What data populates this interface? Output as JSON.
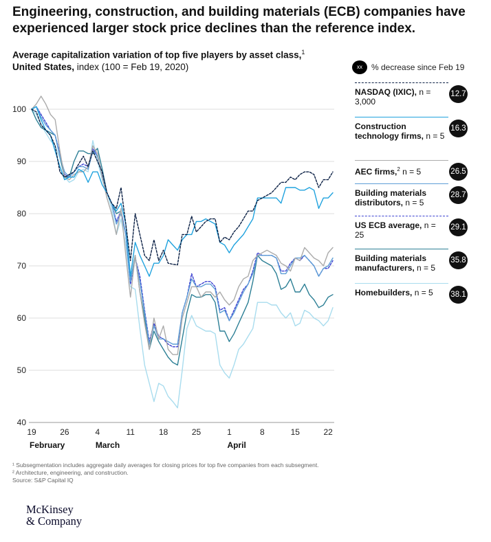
{
  "headline": "Engineering, construction, and building materials (ECB) companies have experienced larger stock price declines than the reference index.",
  "subtitle": {
    "bold_part1": "Average capitalization variation of top five players by asset class,",
    "sup": "1",
    "bold_part2": "United States,",
    "normal_part": " index (100 = Feb 19, 2020)"
  },
  "legend_header": {
    "badge": "xx",
    "text": "% decrease since Feb 19"
  },
  "legend": [
    {
      "name": "NASDAQ (IXIC),",
      "sup": "",
      "n": "n =  3,000",
      "value": "12.7",
      "color": "#0a1f44",
      "dashed": true
    },
    {
      "name": "Construction technology firms,",
      "sup": "",
      "n": "n =  5",
      "value": "16.3",
      "color": "#1fa2de",
      "dashed": false
    },
    {
      "name": "AEC firms,",
      "sup": "2",
      "n": "n = 5",
      "value": "26.5",
      "color": "#ababab",
      "dashed": false
    },
    {
      "name": "Building materials distributors,",
      "sup": "",
      "n": "n =  5",
      "value": "28.7",
      "color": "#5e9ed6",
      "dashed": false
    },
    {
      "name": "US ECB average,",
      "sup": "",
      "n": "n = 25",
      "value": "29.1",
      "color": "#3a3fd0",
      "dashed": true
    },
    {
      "name": "Building materials manufacturers,",
      "sup": "",
      "n": "n =  5",
      "value": "35.8",
      "color": "#2c7f95",
      "dashed": false
    },
    {
      "name": "Homebuilders,",
      "sup": "",
      "n": "n =  5",
      "value": "38.1",
      "color": "#a8dcee",
      "dashed": false
    }
  ],
  "chart_data": {
    "type": "line",
    "title": "Average capitalization variation of top five players by asset class, United States",
    "ylabel": "index (100 = Feb 19, 2020)",
    "ylim": [
      40,
      100
    ],
    "yticks": [
      40,
      50,
      60,
      70,
      80,
      90,
      100
    ],
    "grid": true,
    "x_tick_labels": [
      "19",
      "26",
      "4",
      "11",
      "18",
      "25",
      "1",
      "8",
      "15",
      "22"
    ],
    "x_tick_days": [
      0,
      7,
      14,
      21,
      28,
      35,
      42,
      49,
      56,
      63
    ],
    "month_labels": [
      {
        "label": "February",
        "day": 0
      },
      {
        "label": "March",
        "day": 14
      },
      {
        "label": "April",
        "day": 42
      }
    ],
    "x_unit": "days since Feb 19, 2020",
    "x": [
      0,
      1,
      2,
      3,
      4,
      5,
      6,
      7,
      8,
      9,
      10,
      11,
      12,
      13,
      14,
      15,
      16,
      17,
      18,
      19,
      20,
      21,
      22,
      23,
      24,
      25,
      26,
      27,
      28,
      29,
      30,
      31,
      32,
      33,
      34,
      35,
      36,
      37,
      38,
      39,
      40,
      41,
      42,
      43,
      44,
      45,
      46,
      47,
      48,
      49,
      50,
      51,
      52,
      53,
      54,
      55,
      56,
      57,
      58,
      59,
      60,
      61,
      62,
      63,
      64
    ],
    "series": [
      {
        "name": "NASDAQ (IXIC)",
        "values": [
          100,
          99.5,
          97,
          96,
          95,
          93,
          88,
          87,
          87.5,
          88,
          89.5,
          91,
          89,
          92,
          90,
          88,
          84,
          82,
          81,
          85,
          78,
          71,
          80,
          76,
          72,
          71,
          75,
          71,
          73,
          70.5,
          70.3,
          70.2,
          76,
          76,
          79.5,
          76.5,
          77.5,
          78.5,
          79,
          79,
          74.5,
          75.5,
          75,
          76.5,
          77.5,
          79,
          80.5,
          80.5,
          82.5,
          83,
          83.5,
          84,
          85,
          86,
          86,
          87,
          86.5,
          87.5,
          88,
          88,
          87.5,
          85,
          86.5,
          86.5,
          88
        ]
      },
      {
        "name": "Construction technology firms",
        "values": [
          100,
          100.5,
          98,
          96,
          95,
          92,
          89,
          86.5,
          87,
          87,
          88.5,
          88,
          86,
          88,
          88,
          85.5,
          84,
          82,
          80.5,
          82,
          78,
          68,
          74.5,
          72,
          70,
          68,
          70.5,
          70.5,
          72,
          75,
          74,
          73,
          75,
          76,
          76,
          78.5,
          78.5,
          79,
          78.5,
          78,
          74.5,
          74,
          72.5,
          74,
          75,
          76,
          77.5,
          79,
          83,
          83,
          83,
          83,
          83,
          82,
          85,
          85,
          85,
          84.5,
          84.5,
          85,
          84.5,
          81,
          83,
          83,
          84
        ]
      },
      {
        "name": "AEC firms",
        "values": [
          100,
          101,
          102.5,
          101,
          99,
          98,
          92,
          87,
          86.5,
          87.5,
          88,
          88,
          89,
          93,
          91.5,
          87,
          83,
          80,
          76,
          81,
          72,
          64,
          72,
          65,
          59,
          54,
          60,
          56,
          58.5,
          54,
          53,
          53,
          60,
          63,
          66,
          66,
          64,
          65,
          65,
          64,
          65,
          63.5,
          62.5,
          63.5,
          66,
          67.5,
          68,
          71,
          72,
          72.5,
          73,
          72.5,
          72,
          70.5,
          70,
          69,
          71.5,
          71,
          73.5,
          72.5,
          71.5,
          71,
          70,
          72.5,
          73.5
        ]
      },
      {
        "name": "Building materials distributors",
        "values": [
          100,
          100.5,
          98.5,
          97,
          96,
          95,
          91,
          88,
          87,
          88,
          89,
          89,
          88.5,
          92,
          91,
          87,
          84,
          82,
          78,
          80,
          76,
          67,
          71.5,
          67,
          61,
          55,
          58.5,
          56,
          56,
          55.5,
          55,
          55,
          61,
          64,
          67.5,
          66,
          66,
          66.5,
          66.5,
          65.5,
          61,
          61.5,
          59.5,
          61,
          63,
          65,
          66.5,
          68.5,
          72,
          72,
          72,
          72,
          71.5,
          68.5,
          68.5,
          70,
          71.5,
          71.5,
          72,
          71,
          70,
          68,
          69.5,
          70,
          71.5
        ]
      },
      {
        "name": "US ECB average",
        "values": [
          100,
          100.5,
          99,
          97.5,
          96,
          95,
          91.5,
          87.5,
          87,
          88,
          89,
          89.5,
          89,
          92.5,
          91,
          87.5,
          84,
          82,
          78.5,
          80.5,
          76,
          66.5,
          71.5,
          68,
          61.5,
          55.5,
          59,
          56.5,
          56,
          55,
          54.5,
          54.5,
          61,
          64,
          68.5,
          66,
          66.5,
          67,
          67,
          66,
          61.5,
          62,
          59.5,
          61.5,
          63.5,
          65.5,
          66.5,
          69,
          72.5,
          72,
          72,
          72,
          71.5,
          69,
          69,
          70.5,
          71.5,
          71,
          72,
          71,
          70,
          68,
          69.5,
          69.5,
          71
        ]
      },
      {
        "name": "Building materials manufacturers",
        "values": [
          100,
          98,
          96.5,
          96,
          95.5,
          95,
          91,
          87,
          87,
          90,
          92,
          92,
          91.5,
          91.5,
          92.5,
          88.5,
          84,
          82,
          80,
          80.5,
          76,
          67,
          72,
          65,
          60,
          54,
          57.5,
          55.5,
          54,
          52.5,
          51.5,
          51,
          56,
          61,
          64.5,
          64,
          64,
          64.5,
          64.5,
          63,
          57.5,
          57.5,
          55.5,
          57,
          59,
          61,
          63,
          67,
          72,
          71,
          70.5,
          70,
          68.5,
          65.5,
          66,
          67.5,
          65,
          65,
          66.5,
          64.5,
          63.5,
          62,
          62.5,
          64,
          64.5
        ]
      },
      {
        "name": "Homebuilders",
        "values": [
          100,
          99,
          97,
          95.5,
          94,
          93,
          90.5,
          87,
          86,
          86.5,
          88,
          88.5,
          88,
          94,
          90,
          86.5,
          84,
          81,
          76,
          79,
          74,
          66,
          65.5,
          58,
          51,
          47.5,
          44,
          47.5,
          47,
          45,
          44,
          42.8,
          50,
          58,
          60.5,
          58.5,
          58,
          57.5,
          57.5,
          57,
          51,
          49.5,
          48.5,
          51,
          54,
          55,
          56.5,
          58,
          63,
          63,
          63,
          62.5,
          62.5,
          61,
          60,
          61,
          58.5,
          59,
          61.5,
          61,
          60,
          59.5,
          58.5,
          59.5,
          62
        ]
      }
    ]
  },
  "footnotes": [
    "¹ Subsegmentation includes aggregate daily averages for closing prices for top five companies from each subsegment.",
    "² Architecture, engineering, and construction.",
    " Source: S&P Capital IQ"
  ],
  "logo": {
    "line1": "McKinsey",
    "line2": "& Company"
  }
}
